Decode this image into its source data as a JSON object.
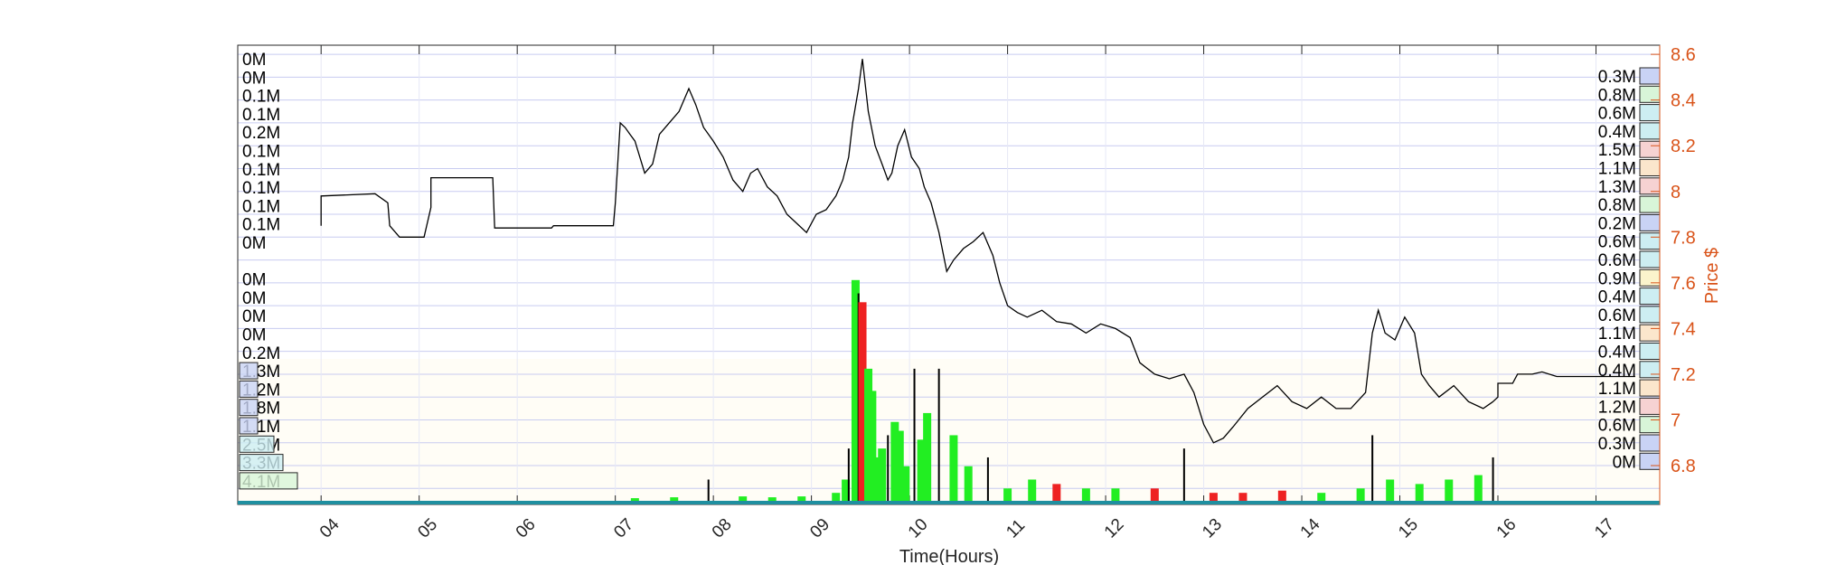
{
  "chart_data": {
    "type": "line",
    "title": "",
    "xlabel": "Time(Hours)",
    "ylabel": "Price $",
    "x_ticks": [
      "04",
      "05",
      "06",
      "07",
      "08",
      "09",
      "10",
      "11",
      "12",
      "13",
      "14",
      "15",
      "16",
      "17"
    ],
    "xlim": [
      3.15,
      17.65
    ],
    "y_ticks": [
      "6.8",
      "7",
      "7.2",
      "7.4",
      "7.6",
      "7.8",
      "8",
      "8.2",
      "8.4",
      "8.6"
    ],
    "ylim": [
      6.63,
      8.64
    ],
    "grid": true,
    "series": [
      {
        "kind": "price",
        "points": [
          [
            4.0,
            7.85
          ],
          [
            4.0,
            7.98
          ],
          [
            4.55,
            7.99
          ],
          [
            4.68,
            7.95
          ],
          [
            4.7,
            7.85
          ],
          [
            4.8,
            7.8
          ],
          [
            5.05,
            7.8
          ],
          [
            5.12,
            7.93
          ],
          [
            5.12,
            8.06
          ],
          [
            5.75,
            8.06
          ],
          [
            5.77,
            7.84
          ],
          [
            6.35,
            7.84
          ],
          [
            6.37,
            7.85
          ],
          [
            6.98,
            7.85
          ],
          [
            7.0,
            7.95
          ],
          [
            7.05,
            8.3
          ],
          [
            7.1,
            8.28
          ],
          [
            7.15,
            8.25
          ],
          [
            7.2,
            8.22
          ],
          [
            7.25,
            8.15
          ],
          [
            7.3,
            8.08
          ],
          [
            7.38,
            8.12
          ],
          [
            7.45,
            8.25
          ],
          [
            7.55,
            8.3
          ],
          [
            7.65,
            8.35
          ],
          [
            7.75,
            8.45
          ],
          [
            7.82,
            8.38
          ],
          [
            7.9,
            8.28
          ],
          [
            8.0,
            8.22
          ],
          [
            8.1,
            8.15
          ],
          [
            8.2,
            8.05
          ],
          [
            8.3,
            8.0
          ],
          [
            8.38,
            8.08
          ],
          [
            8.45,
            8.1
          ],
          [
            8.55,
            8.02
          ],
          [
            8.65,
            7.98
          ],
          [
            8.75,
            7.9
          ],
          [
            8.85,
            7.86
          ],
          [
            8.95,
            7.82
          ],
          [
            9.05,
            7.9
          ],
          [
            9.15,
            7.92
          ],
          [
            9.25,
            7.98
          ],
          [
            9.32,
            8.05
          ],
          [
            9.38,
            8.15
          ],
          [
            9.42,
            8.3
          ],
          [
            9.48,
            8.45
          ],
          [
            9.52,
            8.58
          ],
          [
            9.58,
            8.35
          ],
          [
            9.65,
            8.2
          ],
          [
            9.72,
            8.12
          ],
          [
            9.78,
            8.05
          ],
          [
            9.82,
            8.08
          ],
          [
            9.88,
            8.2
          ],
          [
            9.95,
            8.27
          ],
          [
            10.02,
            8.15
          ],
          [
            10.1,
            8.1
          ],
          [
            10.15,
            8.02
          ],
          [
            10.22,
            7.95
          ],
          [
            10.3,
            7.82
          ],
          [
            10.38,
            7.65
          ],
          [
            10.45,
            7.7
          ],
          [
            10.55,
            7.75
          ],
          [
            10.65,
            7.78
          ],
          [
            10.75,
            7.82
          ],
          [
            10.85,
            7.72
          ],
          [
            10.92,
            7.6
          ],
          [
            11.0,
            7.5
          ],
          [
            11.1,
            7.47
          ],
          [
            11.2,
            7.45
          ],
          [
            11.35,
            7.48
          ],
          [
            11.5,
            7.43
          ],
          [
            11.65,
            7.42
          ],
          [
            11.8,
            7.38
          ],
          [
            11.95,
            7.42
          ],
          [
            12.1,
            7.4
          ],
          [
            12.25,
            7.36
          ],
          [
            12.35,
            7.25
          ],
          [
            12.5,
            7.2
          ],
          [
            12.65,
            7.18
          ],
          [
            12.8,
            7.2
          ],
          [
            12.9,
            7.12
          ],
          [
            13.0,
            6.98
          ],
          [
            13.1,
            6.9
          ],
          [
            13.2,
            6.92
          ],
          [
            13.3,
            6.97
          ],
          [
            13.45,
            7.05
          ],
          [
            13.6,
            7.1
          ],
          [
            13.75,
            7.15
          ],
          [
            13.9,
            7.08
          ],
          [
            14.05,
            7.05
          ],
          [
            14.2,
            7.1
          ],
          [
            14.35,
            7.05
          ],
          [
            14.5,
            7.05
          ],
          [
            14.65,
            7.12
          ],
          [
            14.72,
            7.38
          ],
          [
            14.78,
            7.48
          ],
          [
            14.85,
            7.38
          ],
          [
            14.95,
            7.35
          ],
          [
            15.05,
            7.45
          ],
          [
            15.15,
            7.38
          ],
          [
            15.22,
            7.2
          ],
          [
            15.3,
            7.15
          ],
          [
            15.4,
            7.1
          ],
          [
            15.55,
            7.15
          ],
          [
            15.7,
            7.08
          ],
          [
            15.85,
            7.05
          ],
          [
            15.95,
            7.08
          ],
          [
            16.0,
            7.1
          ],
          [
            16.0,
            7.16
          ],
          [
            16.15,
            7.16
          ],
          [
            16.2,
            7.2
          ],
          [
            16.35,
            7.2
          ],
          [
            16.45,
            7.21
          ],
          [
            16.6,
            7.19
          ],
          [
            17.0,
            7.19
          ],
          [
            17.4,
            7.19
          ]
        ]
      },
      {
        "kind": "volume",
        "bars": [
          [
            7.2,
            0.008,
            "green"
          ],
          [
            7.6,
            0.01,
            "green"
          ],
          [
            7.95,
            0.05,
            "black"
          ],
          [
            8.3,
            0.012,
            "green"
          ],
          [
            8.6,
            0.01,
            "green"
          ],
          [
            8.9,
            0.012,
            "green"
          ],
          [
            9.25,
            0.02,
            "green"
          ],
          [
            9.35,
            0.05,
            "green"
          ],
          [
            9.38,
            0.12,
            "black"
          ],
          [
            9.45,
            0.5,
            "green"
          ],
          [
            9.48,
            0.47,
            "black"
          ],
          [
            9.52,
            0.45,
            "red"
          ],
          [
            9.58,
            0.3,
            "green"
          ],
          [
            9.62,
            0.25,
            "green"
          ],
          [
            9.68,
            0.1,
            "green"
          ],
          [
            9.72,
            0.12,
            "green"
          ],
          [
            9.78,
            0.15,
            "black"
          ],
          [
            9.85,
            0.18,
            "green"
          ],
          [
            9.9,
            0.16,
            "green"
          ],
          [
            9.96,
            0.08,
            "green"
          ],
          [
            10.05,
            0.3,
            "black"
          ],
          [
            10.12,
            0.14,
            "green"
          ],
          [
            10.18,
            0.2,
            "green"
          ],
          [
            10.3,
            0.3,
            "black"
          ],
          [
            10.45,
            0.15,
            "green"
          ],
          [
            10.6,
            0.08,
            "green"
          ],
          [
            10.8,
            0.1,
            "black"
          ],
          [
            11.0,
            0.03,
            "green"
          ],
          [
            11.25,
            0.05,
            "green"
          ],
          [
            11.5,
            0.04,
            "red"
          ],
          [
            11.8,
            0.03,
            "green"
          ],
          [
            12.1,
            0.03,
            "green"
          ],
          [
            12.5,
            0.03,
            "red"
          ],
          [
            12.8,
            0.12,
            "black"
          ],
          [
            13.1,
            0.02,
            "red"
          ],
          [
            13.4,
            0.02,
            "red"
          ],
          [
            13.8,
            0.025,
            "red"
          ],
          [
            14.2,
            0.02,
            "green"
          ],
          [
            14.6,
            0.03,
            "green"
          ],
          [
            14.72,
            0.15,
            "black"
          ],
          [
            14.9,
            0.05,
            "green"
          ],
          [
            15.2,
            0.04,
            "green"
          ],
          [
            15.5,
            0.05,
            "green"
          ],
          [
            15.8,
            0.06,
            "green"
          ],
          [
            15.95,
            0.1,
            "black"
          ]
        ]
      }
    ],
    "left_profile_labels": [
      "0M",
      "0M",
      "0.1M",
      "0.1M",
      "0.2M",
      "0.1M",
      "0.1M",
      "0.1M",
      "0.1M",
      "0.1M",
      "0M",
      "",
      "0M",
      "0M",
      "0M",
      "0M",
      "0.2M",
      "1.3M",
      "1.2M",
      "1.8M",
      "1.1M",
      "2.5M",
      "3.3M",
      "4.1M"
    ],
    "right_profile_labels": [
      "0.3M",
      "0.8M",
      "0.6M",
      "0.4M",
      "1.5M",
      "1.1M",
      "1.3M",
      "0.8M",
      "0.2M",
      "0.6M",
      "0.6M",
      "0.9M",
      "0.4M",
      "0.6M",
      "1.1M",
      "0.4M",
      "0.4M",
      "1.1M",
      "1.2M",
      "0.6M",
      "0.3M",
      "0M"
    ],
    "colors": {
      "price_line": "#000000",
      "axis_right": "#d95319",
      "grid": "#c8ccf0",
      "buy_volume": "#22ee22",
      "sell_volume": "#ee2222",
      "band": "#fffdf6"
    }
  }
}
